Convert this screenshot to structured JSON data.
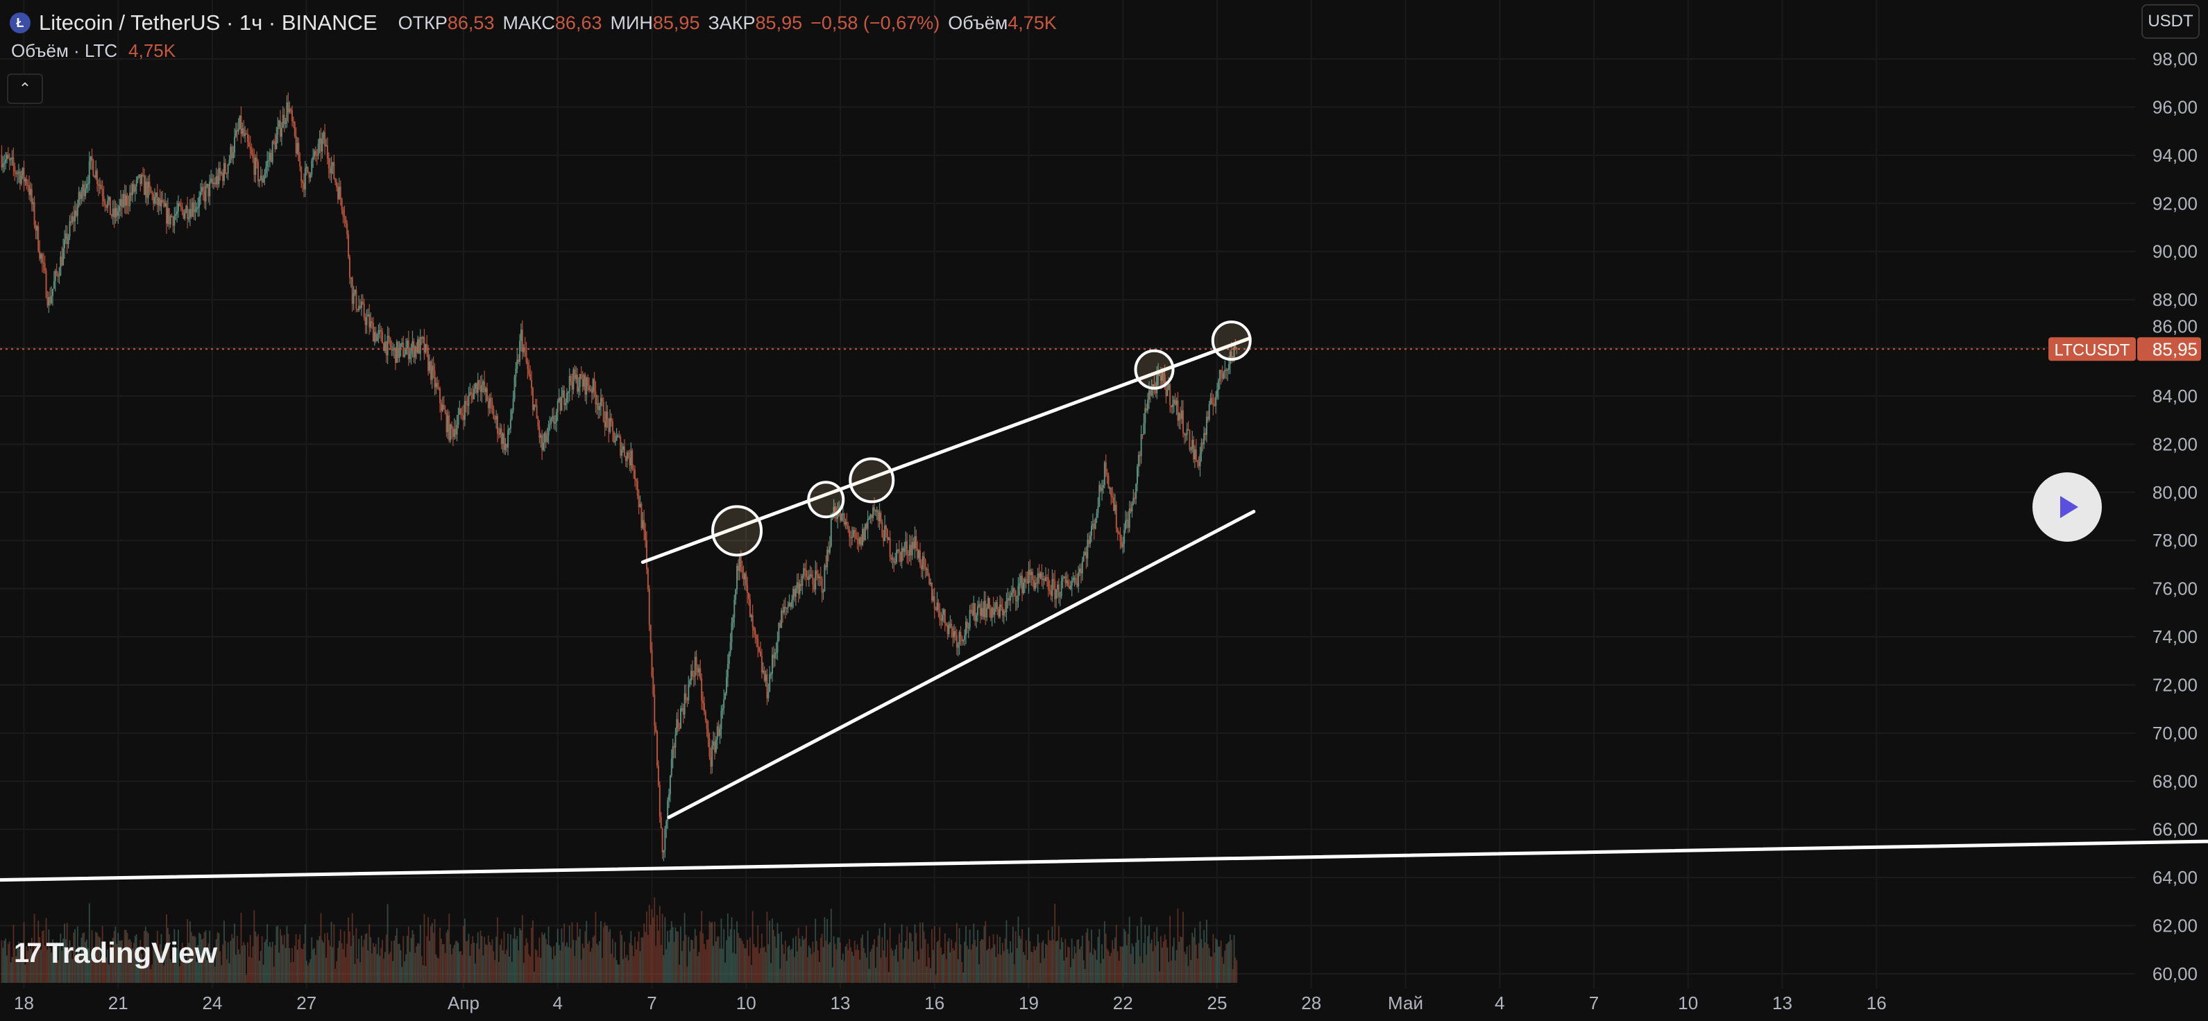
{
  "header": {
    "title": "Litecoin / TetherUS · 1ч · BINANCE",
    "open_label": "ОТКР",
    "open": "86,53",
    "high_label": "МАКС",
    "high": "86,63",
    "low_label": "МИН",
    "low": "85,95",
    "close_label": "ЗАКР",
    "close": "85,95",
    "change": "−0,58 (−0,67%)",
    "volume_label": "Объём",
    "volume": "4,75K"
  },
  "volume_legend": {
    "label": "Объём · LTC",
    "value": "4,75K"
  },
  "collapse_icon": "chevron-up",
  "currency_button": "USDT",
  "branding": "TradingView",
  "price_tag": {
    "symbol": "LTCUSDT",
    "price": "85,95"
  },
  "colors": {
    "up": "#5b8f80",
    "down": "#b5523b",
    "price_line": "#c8583f",
    "drawing": "#ffffff",
    "background": "#0f0f0f"
  },
  "chart_data": {
    "type": "candlestick",
    "interval": "1h",
    "ylim": [
      60,
      98
    ],
    "y_ticks": [
      "60,00",
      "62,00",
      "64,00",
      "66,00",
      "68,00",
      "70,00",
      "72,00",
      "74,00",
      "76,00",
      "78,00",
      "80,00",
      "82,00",
      "84,00",
      "86,00",
      "88,00",
      "90,00",
      "92,00",
      "94,00",
      "96,00",
      "98,00"
    ],
    "x_ticks": [
      {
        "label": "18",
        "date": "03-18"
      },
      {
        "label": "21",
        "date": "03-21"
      },
      {
        "label": "24",
        "date": "03-24"
      },
      {
        "label": "27",
        "date": "03-27"
      },
      {
        "label": "Апр",
        "date": "04-01"
      },
      {
        "label": "4",
        "date": "04-04"
      },
      {
        "label": "7",
        "date": "04-07"
      },
      {
        "label": "10",
        "date": "04-10"
      },
      {
        "label": "13",
        "date": "04-13"
      },
      {
        "label": "16",
        "date": "04-16"
      },
      {
        "label": "19",
        "date": "04-19"
      },
      {
        "label": "22",
        "date": "04-22"
      },
      {
        "label": "25",
        "date": "04-25"
      },
      {
        "label": "28",
        "date": "04-28"
      },
      {
        "label": "Май",
        "date": "05-01"
      },
      {
        "label": "4",
        "date": "05-04"
      },
      {
        "label": "7",
        "date": "05-07"
      },
      {
        "label": "10",
        "date": "05-10"
      },
      {
        "label": "13",
        "date": "05-13"
      },
      {
        "label": "16",
        "date": "05-16"
      }
    ],
    "close_path": [
      [
        "03-17 06:00",
        94.0
      ],
      [
        "03-18 03:00",
        92.9
      ],
      [
        "03-18 19:00",
        87.9
      ],
      [
        "03-19 12:00",
        91.1
      ],
      [
        "03-20 04:00",
        93.7
      ],
      [
        "03-20 20:00",
        91.4
      ],
      [
        "03-21 17:00",
        92.9
      ],
      [
        "03-22 15:00",
        91.4
      ],
      [
        "03-23 12:00",
        92.0
      ],
      [
        "03-24 10:00",
        93.4
      ],
      [
        "03-24 21:00",
        95.2
      ],
      [
        "03-25 13:00",
        92.9
      ],
      [
        "03-26 10:00",
        96.1
      ],
      [
        "03-26 21:00",
        92.9
      ],
      [
        "03-27 13:00",
        94.6
      ],
      [
        "03-28 05:00",
        91.7
      ],
      [
        "03-28 11:00",
        88.2
      ],
      [
        "03-29 03:00",
        86.7
      ],
      [
        "03-29 19:00",
        85.8
      ],
      [
        "03-30 17:00",
        86.1
      ],
      [
        "03-31 14:00",
        82.4
      ],
      [
        "04-01 12:00",
        84.7
      ],
      [
        "04-02 09:00",
        81.8
      ],
      [
        "04-02 20:00",
        86.5
      ],
      [
        "04-03 12:00",
        81.8
      ],
      [
        "04-04 10:00",
        84.7
      ],
      [
        "04-05 02:00",
        84.4
      ],
      [
        "04-05 18:00",
        82.4
      ],
      [
        "04-06 10:00",
        81.2
      ],
      [
        "04-06 19:00",
        77.7
      ],
      [
        "04-07 02:00",
        70.6
      ],
      [
        "04-07 08:00",
        64.8
      ],
      [
        "04-07 18:00",
        70.1
      ],
      [
        "04-08 10:00",
        73.0
      ],
      [
        "04-08 21:00",
        68.9
      ],
      [
        "04-09 08:00",
        71.3
      ],
      [
        "04-09 19:00",
        77.7
      ],
      [
        "04-10 05:00",
        74.2
      ],
      [
        "04-10 16:00",
        71.8
      ],
      [
        "04-11 03:00",
        74.8
      ],
      [
        "04-11 19:00",
        76.5
      ],
      [
        "04-12 11:00",
        76.2
      ],
      [
        "04-12 19:00",
        79.4
      ],
      [
        "04-13 14:00",
        77.7
      ],
      [
        "04-14 01:00",
        79.4
      ],
      [
        "04-14 17:00",
        77.3
      ],
      [
        "04-15 09:00",
        77.9
      ],
      [
        "04-16 01:00",
        75.3
      ],
      [
        "04-16 18:00",
        73.9
      ],
      [
        "04-17 10:00",
        75.3
      ],
      [
        "04-18 02:00",
        75.0
      ],
      [
        "04-18 23:00",
        76.5
      ],
      [
        "04-19 21:00",
        75.9
      ],
      [
        "04-20 13:00",
        76.5
      ],
      [
        "04-21 00:00",
        78.3
      ],
      [
        "04-21 11:00",
        81.2
      ],
      [
        "04-21 22:00",
        77.9
      ],
      [
        "04-22 08:00",
        79.6
      ],
      [
        "04-22 19:00",
        84.1
      ],
      [
        "04-23 06:00",
        84.7
      ],
      [
        "04-23 22:00",
        82.9
      ],
      [
        "04-24 09:00",
        81.2
      ],
      [
        "04-24 19:00",
        83.5
      ],
      [
        "04-25 06:00",
        85.3
      ],
      [
        "04-25 15:00",
        85.95
      ]
    ],
    "last_price": 85.95,
    "drawings": {
      "trend_lines": [
        {
          "from": [
            "04-06 17:00",
            77.1
          ],
          "to": [
            "04-26 01:00",
            86.4
          ]
        },
        {
          "from": [
            "04-07 13:00",
            66.5
          ],
          "to": [
            "04-26 04:00",
            79.2
          ]
        },
        {
          "from": [
            "03-17 06:00",
            63.9
          ],
          "to": [
            "05-26 13:00",
            65.5
          ]
        }
      ],
      "circles": [
        [
          "04-09 17:00",
          78.4
        ],
        [
          "04-12 13:00",
          79.7
        ],
        [
          "04-14 00:00",
          80.5
        ],
        [
          "04-23 00:00",
          85.1
        ],
        [
          "04-25 11:00",
          86.3
        ]
      ]
    }
  }
}
